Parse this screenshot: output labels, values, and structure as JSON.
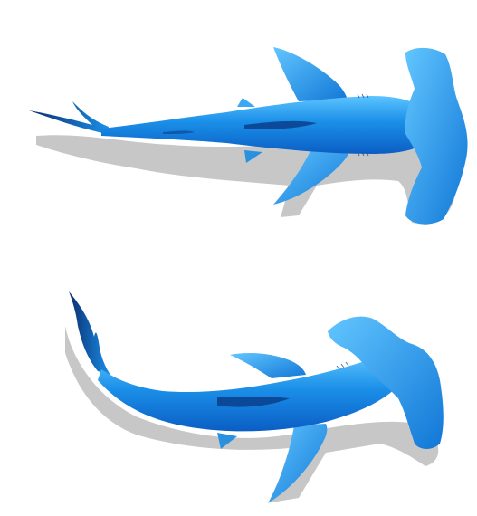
{
  "scene": {
    "background": "#ffffff",
    "subjects": [
      {
        "kind": "hammerhead-shark",
        "view": "top-down",
        "pose": "straight",
        "body_color": "#1a8fe8",
        "highlight_color": "#5cc4ff",
        "shade_color": "#0b3e8c",
        "shadow_color": "#b9b9b9"
      },
      {
        "kind": "hammerhead-shark",
        "view": "top-down",
        "pose": "curved-tail",
        "body_color": "#1a8fe8",
        "highlight_color": "#5cc4ff",
        "shade_color": "#0b3e8c",
        "shadow_color": "#b9b9b9"
      }
    ]
  }
}
